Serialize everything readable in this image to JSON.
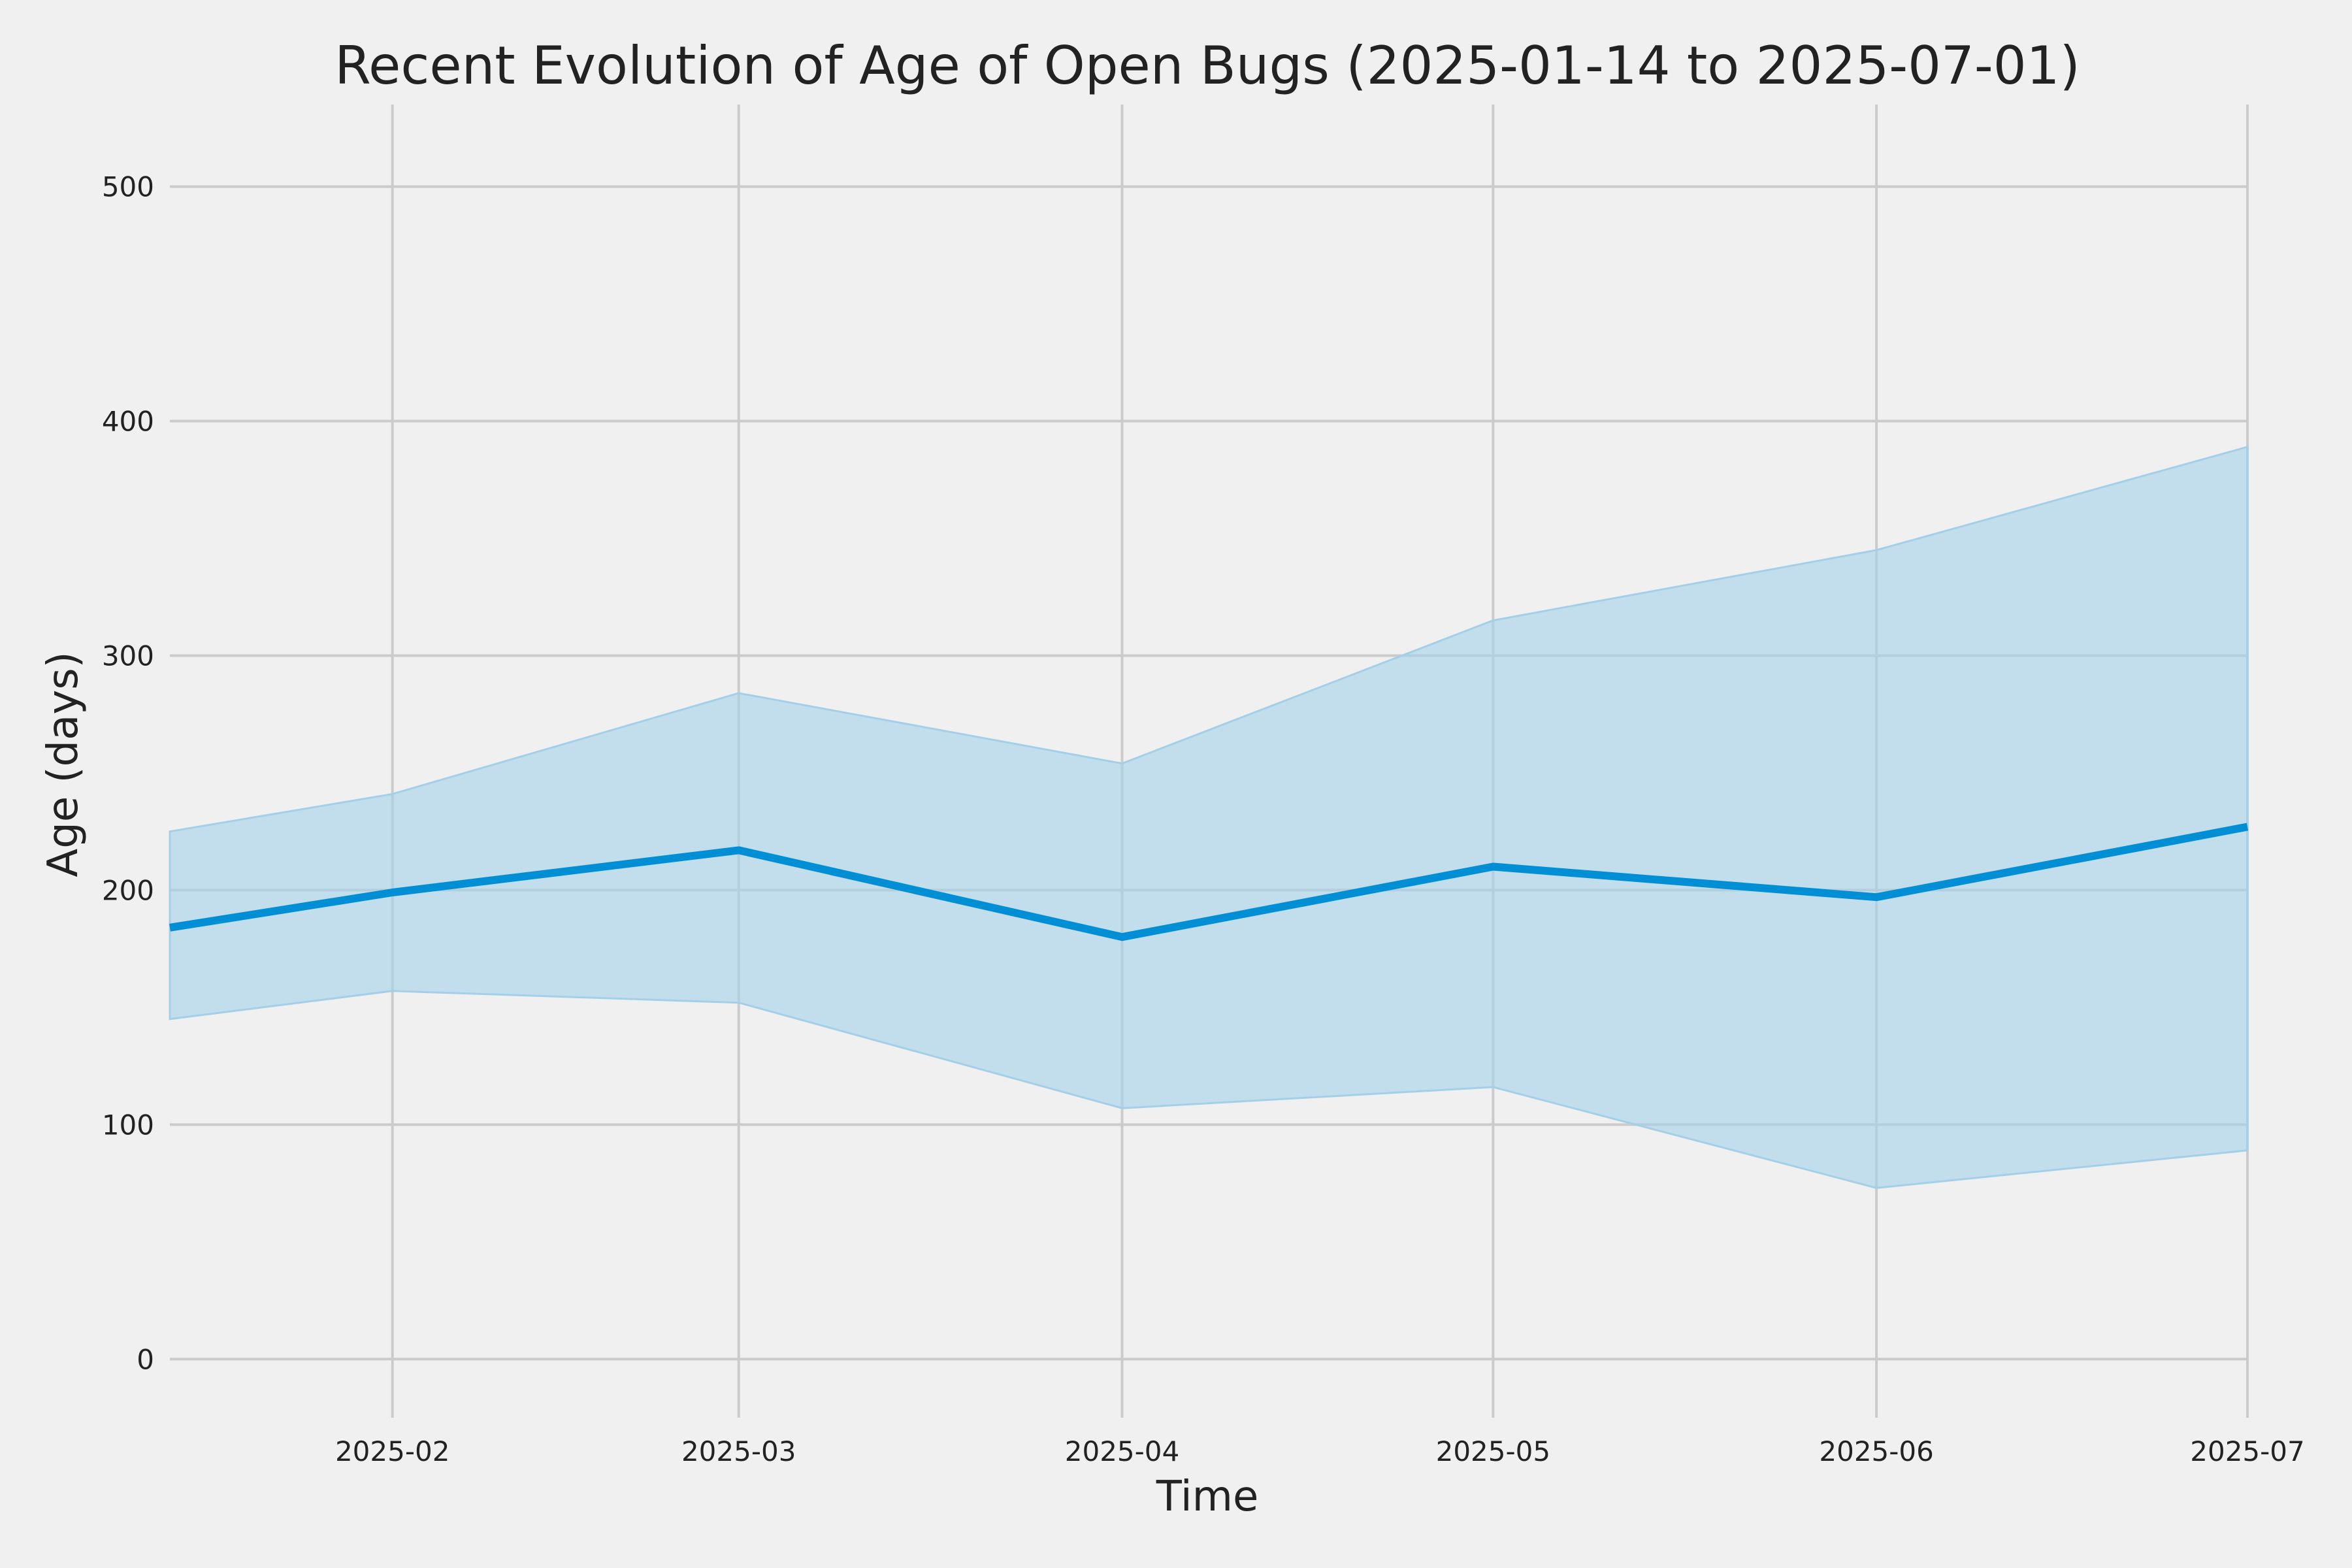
{
  "chart_data": {
    "type": "line",
    "title": "Recent Evolution of Age of Open Bugs (2025-01-14 to 2025-07-01)",
    "xlabel": "Time",
    "ylabel": "Age (days)",
    "x_range": [
      "2025-01-14",
      "2025-07-01"
    ],
    "ylim": [
      -25,
      535
    ],
    "y_ticks": [
      0,
      100,
      200,
      300,
      400,
      500
    ],
    "x_ticks": [
      {
        "date": "2025-02-01",
        "label": "2025-02"
      },
      {
        "date": "2025-03-01",
        "label": "2025-03"
      },
      {
        "date": "2025-04-01",
        "label": "2025-04"
      },
      {
        "date": "2025-05-01",
        "label": "2025-05"
      },
      {
        "date": "2025-06-01",
        "label": "2025-06"
      },
      {
        "date": "2025-07-01",
        "label": "2025-07"
      }
    ],
    "grid": true,
    "x": [
      "2025-01-14",
      "2025-02-01",
      "2025-03-01",
      "2025-04-01",
      "2025-05-01",
      "2025-06-01",
      "2025-07-01"
    ],
    "series": [
      {
        "values": [
          184,
          199,
          217,
          180,
          210,
          197,
          227
        ],
        "band_lower": [
          145,
          157,
          152,
          107,
          116,
          73,
          89
        ],
        "band_upper": [
          225,
          241,
          284,
          254,
          315,
          345,
          389
        ]
      }
    ],
    "colors": {
      "line": "#008fd5",
      "band": "#a3d0e8",
      "background": "#f0f0f0",
      "grid": "#cbcbcb",
      "text": "#222222"
    }
  }
}
